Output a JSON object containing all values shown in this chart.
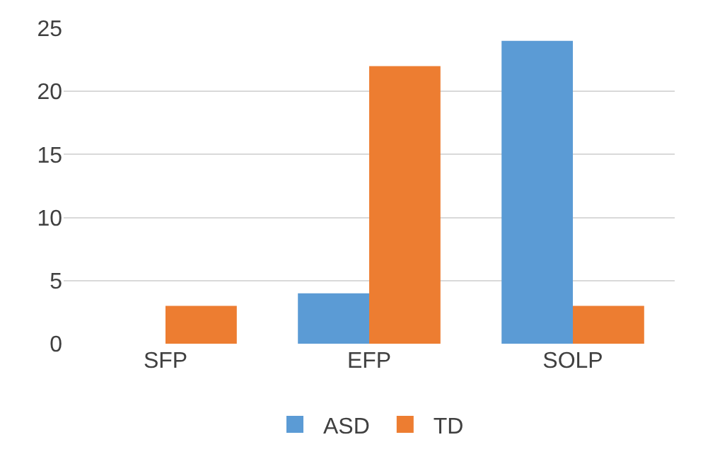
{
  "chart_data": {
    "type": "bar",
    "categories": [
      "SFP",
      "EFP",
      "SOLP"
    ],
    "series": [
      {
        "name": "ASD",
        "color": "#5b9bd5",
        "values": [
          0,
          4,
          24
        ]
      },
      {
        "name": "TD",
        "color": "#ed7d31",
        "values": [
          3,
          22,
          3
        ]
      }
    ],
    "ylim": [
      0,
      25
    ],
    "yticks": [
      0,
      5,
      10,
      15,
      20,
      25
    ],
    "grid": "y",
    "legend": "bottom"
  }
}
